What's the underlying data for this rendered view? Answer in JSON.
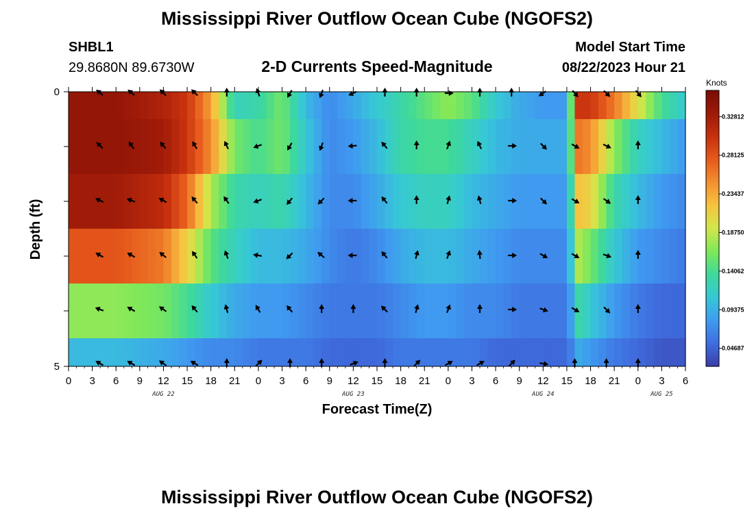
{
  "title": "Mississippi River Outflow Ocean Cube (NGOFS2)",
  "title_repeat": "Mississippi River Outflow Ocean Cube (NGOFS2)",
  "station": {
    "id": "SHBL1",
    "coords": "29.8680N  89.6730W"
  },
  "subtitle": "2-D Currents Speed-Magnitude",
  "model_start": {
    "label": "Model Start Time",
    "value": "08/22/2023 Hour 21"
  },
  "chart_data": {
    "type": "heatmap",
    "title": "2-D Currents Speed-Magnitude",
    "xlabel": "Forecast Time(Z)",
    "ylabel": "Depth (ft)",
    "x_tick_labels": [
      "0",
      "3",
      "6",
      "9",
      "12",
      "15",
      "18",
      "21",
      "0",
      "3",
      "6",
      "9",
      "12",
      "15",
      "18",
      "21",
      "0",
      "3",
      "6",
      "9",
      "12",
      "15",
      "18",
      "21",
      "0",
      "3",
      "6"
    ],
    "x_hours": [
      0,
      3,
      6,
      9,
      12,
      15,
      18,
      21,
      24,
      27,
      30,
      33,
      36,
      39,
      42,
      45,
      48,
      51,
      54,
      57,
      60,
      63,
      66,
      69,
      72,
      75,
      78
    ],
    "date_labels": [
      {
        "label": "AUG 22",
        "hour": 12
      },
      {
        "label": "AUG 23",
        "hour": 36
      },
      {
        "label": "AUG 24",
        "hour": 60
      },
      {
        "label": "AUG 25",
        "hour": 75
      }
    ],
    "y_tick_labels": [
      "0",
      "5"
    ],
    "ylim": [
      0,
      5
    ],
    "xlim": [
      0,
      78
    ],
    "colorbar": {
      "unit": "Knots",
      "ticks": [
        "0.32812",
        "0.28125",
        "0.23437",
        "0.18750",
        "0.14062",
        "0.09375",
        "0.04687"
      ],
      "tick_values": [
        0.32812,
        0.28125,
        0.23437,
        0.1875,
        0.14062,
        0.09375,
        0.04687
      ],
      "range": [
        0.025,
        0.36
      ],
      "colors": [
        "#3a3ca8",
        "#3f6ee0",
        "#3f9bf0",
        "#36c8d6",
        "#3ed99a",
        "#7ee85a",
        "#d2e64a",
        "#f6c440",
        "#f39030",
        "#e65a1c",
        "#c6300e",
        "#9e1a08",
        "#7a0c04"
      ]
    },
    "x_knots": [
      0,
      6,
      12,
      15,
      18,
      21,
      24,
      27,
      30,
      33,
      36,
      39,
      42,
      45,
      48,
      51,
      54,
      57,
      60,
      63,
      64.5,
      66,
      69,
      72,
      75,
      78
    ],
    "series": [
      {
        "values": [
          0.34,
          0.34,
          0.32,
          0.3,
          0.24,
          0.12,
          0.13,
          0.16,
          0.1,
          0.07,
          0.09,
          0.11,
          0.13,
          0.15,
          0.17,
          0.15,
          0.11,
          0.09,
          0.08,
          0.08,
          0.3,
          0.3,
          0.26,
          0.2,
          0.14,
          0.11
        ]
      },
      {
        "values": [
          0.34,
          0.34,
          0.33,
          0.3,
          0.25,
          0.16,
          0.14,
          0.16,
          0.11,
          0.07,
          0.08,
          0.1,
          0.13,
          0.14,
          0.14,
          0.12,
          0.1,
          0.09,
          0.09,
          0.09,
          0.26,
          0.25,
          0.17,
          0.12,
          0.1,
          0.08
        ]
      },
      {
        "values": [
          0.33,
          0.33,
          0.31,
          0.27,
          0.18,
          0.13,
          0.12,
          0.13,
          0.1,
          0.07,
          0.07,
          0.09,
          0.11,
          0.12,
          0.12,
          0.1,
          0.09,
          0.08,
          0.08,
          0.08,
          0.22,
          0.21,
          0.13,
          0.1,
          0.08,
          0.07
        ]
      },
      {
        "values": [
          0.28,
          0.28,
          0.26,
          0.21,
          0.15,
          0.12,
          0.1,
          0.1,
          0.09,
          0.07,
          0.06,
          0.07,
          0.09,
          0.1,
          0.1,
          0.09,
          0.08,
          0.07,
          0.07,
          0.07,
          0.18,
          0.16,
          0.11,
          0.08,
          0.07,
          0.06
        ]
      },
      {
        "values": [
          0.17,
          0.17,
          0.16,
          0.14,
          0.11,
          0.09,
          0.08,
          0.08,
          0.07,
          0.06,
          0.06,
          0.06,
          0.07,
          0.08,
          0.08,
          0.07,
          0.07,
          0.06,
          0.06,
          0.06,
          0.13,
          0.11,
          0.08,
          0.06,
          0.05,
          0.05
        ]
      },
      {
        "values": [
          0.1,
          0.1,
          0.09,
          0.08,
          0.07,
          0.07,
          0.06,
          0.06,
          0.06,
          0.05,
          0.05,
          0.05,
          0.06,
          0.06,
          0.06,
          0.06,
          0.05,
          0.05,
          0.05,
          0.05,
          0.09,
          0.08,
          0.06,
          0.05,
          0.04,
          0.04
        ]
      }
    ],
    "arrow_hours": [
      4,
      8,
      12,
      16,
      20,
      24,
      28,
      32,
      36,
      40,
      44,
      48,
      52,
      56,
      60,
      64,
      68,
      72
    ],
    "arrow_rows": [
      [
        310,
        310,
        315,
        315,
        0,
        340,
        210,
        200,
        245,
        0,
        0,
        90,
        0,
        0,
        235,
        140,
        135,
        140
      ],
      [
        315,
        325,
        320,
        330,
        335,
        250,
        210,
        200,
        265,
        320,
        0,
        20,
        335,
        90,
        135,
        120,
        115,
        0
      ],
      [
        295,
        290,
        300,
        320,
        325,
        250,
        220,
        225,
        270,
        320,
        0,
        15,
        345,
        90,
        135,
        120,
        125,
        0
      ],
      [
        300,
        300,
        310,
        325,
        340,
        280,
        225,
        310,
        270,
        320,
        15,
        20,
        355,
        90,
        120,
        120,
        110,
        0
      ],
      [
        290,
        300,
        305,
        320,
        345,
        330,
        320,
        0,
        0,
        315,
        15,
        20,
        0,
        90,
        110,
        120,
        135,
        0
      ],
      [
        300,
        300,
        305,
        300,
        0,
        45,
        0,
        0,
        70,
        0,
        45,
        60,
        60,
        45,
        100,
        0,
        0,
        0
      ]
    ]
  }
}
